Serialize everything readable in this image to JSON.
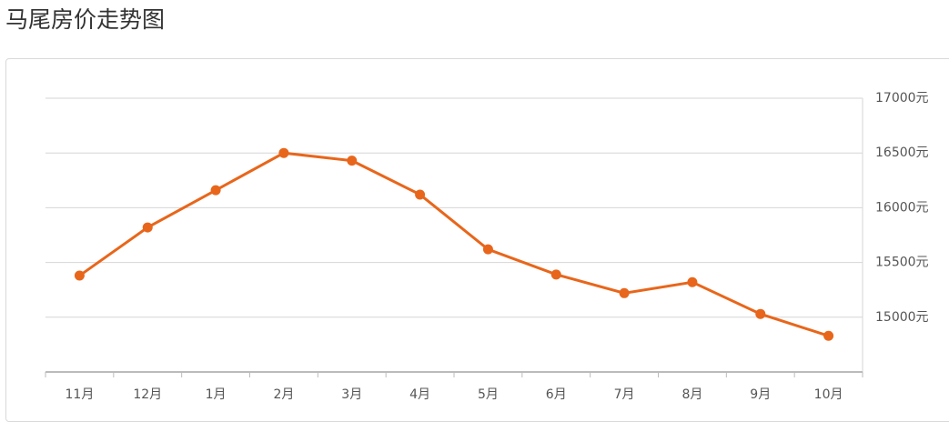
{
  "chart_data": {
    "type": "line",
    "title": "马尾房价走势图",
    "categories": [
      "11月",
      "12月",
      "1月",
      "2月",
      "3月",
      "4月",
      "5月",
      "6月",
      "7月",
      "8月",
      "9月",
      "10月"
    ],
    "series": [
      {
        "name": "房价",
        "color": "#e8661b",
        "values": [
          15380,
          15820,
          16160,
          16500,
          16430,
          16120,
          15620,
          15390,
          15220,
          15320,
          15030,
          14830
        ]
      }
    ],
    "ylim": [
      14500,
      17000
    ],
    "yticks": [
      {
        "value": 15000,
        "label": "15000元"
      },
      {
        "value": 15500,
        "label": "15500元"
      },
      {
        "value": 16000,
        "label": "16000元"
      },
      {
        "value": 16500,
        "label": "16500元"
      },
      {
        "value": 17000,
        "label": "17000元"
      }
    ],
    "grid": true
  }
}
